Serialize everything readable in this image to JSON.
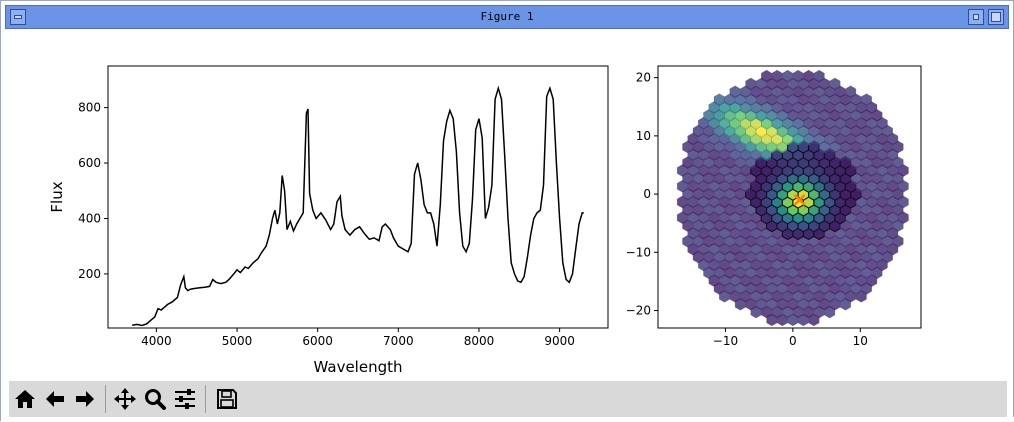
{
  "window": {
    "title": "Figure 1"
  },
  "toolbar": {
    "buttons": [
      {
        "name": "home-button",
        "icon": "home-icon"
      },
      {
        "name": "back-button",
        "icon": "arrow-left-icon"
      },
      {
        "name": "forward-button",
        "icon": "arrow-right-icon"
      },
      {
        "name": "pan-button",
        "icon": "move-icon"
      },
      {
        "name": "zoom-button",
        "icon": "magnifier-icon"
      },
      {
        "name": "configure-subplots-button",
        "icon": "sliders-icon"
      },
      {
        "name": "save-button",
        "icon": "floppy-disk-icon"
      }
    ]
  },
  "chart_data": [
    {
      "type": "line",
      "title": "",
      "xlabel": "Wavelength",
      "ylabel": "Flux",
      "xlim": [
        3400,
        9600
      ],
      "ylim": [
        5,
        950
      ],
      "xticks": [
        4000,
        5000,
        6000,
        7000,
        8000,
        9000
      ],
      "yticks": [
        200,
        400,
        600,
        800
      ],
      "color": "#000000",
      "grid": false,
      "series": [
        {
          "x": [
            3700,
            3760,
            3820,
            3880,
            3940,
            3980,
            4020,
            4060,
            4100,
            4140,
            4200,
            4260,
            4300,
            4340,
            4360,
            4390,
            4420,
            4480,
            4540,
            4600,
            4660,
            4700,
            4740,
            4800,
            4860,
            4900,
            4960,
            5000,
            5040,
            5100,
            5140,
            5200,
            5260,
            5300,
            5360,
            5400,
            5440,
            5470,
            5500,
            5530,
            5560,
            5590,
            5620,
            5660,
            5700,
            5740,
            5780,
            5820,
            5860,
            5880,
            5900,
            5940,
            5980,
            6040,
            6100,
            6160,
            6200,
            6240,
            6280,
            6300,
            6340,
            6400,
            6460,
            6520,
            6580,
            6640,
            6700,
            6760,
            6800,
            6840,
            6900,
            6940,
            7000,
            7060,
            7120,
            7160,
            7200,
            7240,
            7280,
            7320,
            7360,
            7400,
            7440,
            7480,
            7520,
            7560,
            7600,
            7640,
            7680,
            7720,
            7760,
            7800,
            7840,
            7880,
            7920,
            7960,
            8000,
            8040,
            8080,
            8120,
            8160,
            8200,
            8240,
            8280,
            8320,
            8360,
            8400,
            8440,
            8480,
            8520,
            8560,
            8600,
            8640,
            8680,
            8720,
            8760,
            8800,
            8840,
            8880,
            8920,
            8960,
            9000,
            9040,
            9080,
            9120,
            9160,
            9200,
            9240,
            9280,
            9300
          ],
          "y": [
            15,
            18,
            14,
            20,
            35,
            45,
            75,
            70,
            80,
            90,
            100,
            115,
            160,
            190,
            150,
            140,
            145,
            148,
            150,
            152,
            155,
            180,
            170,
            165,
            170,
            180,
            200,
            215,
            205,
            225,
            220,
            240,
            255,
            275,
            300,
            340,
            400,
            430,
            380,
            420,
            555,
            500,
            360,
            390,
            355,
            380,
            400,
            420,
            780,
            795,
            490,
            430,
            400,
            420,
            395,
            360,
            380,
            460,
            480,
            410,
            360,
            340,
            360,
            370,
            345,
            325,
            330,
            320,
            370,
            380,
            360,
            330,
            300,
            290,
            280,
            310,
            560,
            600,
            540,
            450,
            420,
            420,
            380,
            300,
            450,
            680,
            750,
            790,
            760,
            640,
            420,
            300,
            280,
            310,
            470,
            720,
            760,
            690,
            400,
            440,
            520,
            830,
            870,
            830,
            620,
            400,
            240,
            200,
            175,
            170,
            190,
            260,
            340,
            400,
            420,
            430,
            520,
            840,
            870,
            830,
            600,
            400,
            240,
            180,
            170,
            200,
            290,
            380,
            420,
            420
          ],
          "note_unused": ""
        }
      ]
    },
    {
      "type": "scatter",
      "title": "",
      "xlabel": "",
      "ylabel": "",
      "xlim": [
        -20,
        19
      ],
      "ylim": [
        -23,
        22
      ],
      "xticks": [
        -10,
        0,
        10
      ],
      "yticks": [
        -20,
        -10,
        0,
        10,
        20
      ],
      "grid": false,
      "colormap": "viridis",
      "background_color": "#5a3f78",
      "hex_radius": 0.9,
      "outline_center": [
        1.5,
        0.5
      ],
      "outline_radius": 8,
      "galaxy_center": [
        -4.5,
        10.5
      ],
      "nucleus_center": [
        1,
        -1
      ],
      "marker_color": "#ff7f0e"
    }
  ]
}
